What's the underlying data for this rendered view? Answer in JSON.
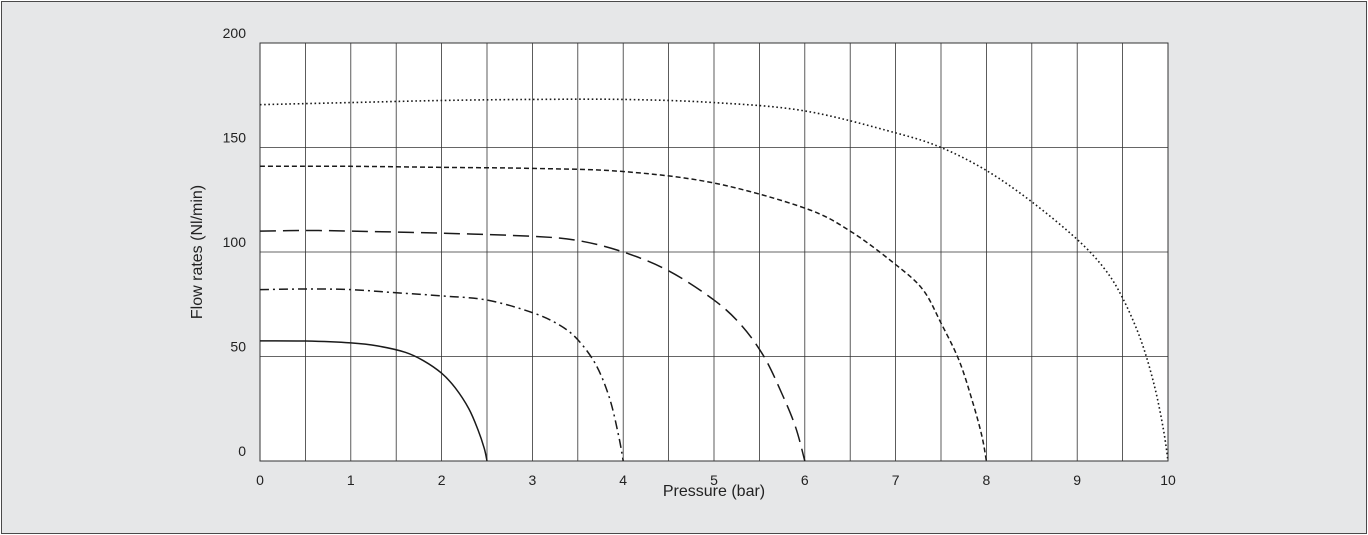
{
  "chart_data": {
    "type": "line",
    "xlabel": "Pressure (bar)",
    "ylabel": "Flow rates (Nl/min)",
    "xlim": [
      0,
      10
    ],
    "ylim": [
      0,
      200
    ],
    "x_ticks": [
      "0",
      "1",
      "2",
      "3",
      "4",
      "5",
      "6",
      "7",
      "8",
      "9",
      "10"
    ],
    "y_ticks": [
      "0",
      "50",
      "100",
      "150",
      "200"
    ],
    "grid": {
      "vertical_step": 0.5,
      "horizontal_step": 50
    },
    "colors": {
      "background": "#e6e7e8",
      "plot_area": "#ffffff",
      "lines": "#1a1a1a",
      "grid": "#333333"
    },
    "series": [
      {
        "line_style": "solid",
        "points": [
          [
            0,
            57.5
          ],
          [
            0.5,
            57.4
          ],
          [
            1,
            56.5
          ],
          [
            1.3,
            55
          ],
          [
            1.6,
            52
          ],
          [
            1.8,
            48
          ],
          [
            2.0,
            42
          ],
          [
            2.15,
            35
          ],
          [
            2.3,
            25
          ],
          [
            2.4,
            15
          ],
          [
            2.47,
            6
          ],
          [
            2.5,
            0
          ]
        ]
      },
      {
        "line_style": "dash-dot",
        "points": [
          [
            0,
            82
          ],
          [
            0.5,
            82.3
          ],
          [
            1,
            82
          ],
          [
            1.5,
            80.5
          ],
          [
            2,
            79
          ],
          [
            2.5,
            77
          ],
          [
            3,
            71
          ],
          [
            3.3,
            65
          ],
          [
            3.5,
            58
          ],
          [
            3.7,
            46
          ],
          [
            3.85,
            30
          ],
          [
            3.95,
            12
          ],
          [
            4.0,
            0
          ]
        ]
      },
      {
        "line_style": "long-dash",
        "points": [
          [
            0,
            110
          ],
          [
            0.5,
            110.3
          ],
          [
            1,
            110
          ],
          [
            2,
            109
          ],
          [
            3,
            107.5
          ],
          [
            3.5,
            105.5
          ],
          [
            4,
            100
          ],
          [
            4.5,
            91
          ],
          [
            5,
            77
          ],
          [
            5.3,
            65
          ],
          [
            5.55,
            50
          ],
          [
            5.75,
            32
          ],
          [
            5.9,
            16
          ],
          [
            6.0,
            0
          ]
        ]
      },
      {
        "line_style": "dashed",
        "points": [
          [
            0,
            141
          ],
          [
            1,
            141
          ],
          [
            2,
            140.5
          ],
          [
            3,
            140
          ],
          [
            4,
            138.5
          ],
          [
            5,
            133
          ],
          [
            6,
            121
          ],
          [
            6.5,
            110
          ],
          [
            7,
            94
          ],
          [
            7.3,
            82
          ],
          [
            7.5,
            66
          ],
          [
            7.7,
            48
          ],
          [
            7.85,
            28
          ],
          [
            7.95,
            12
          ],
          [
            8.0,
            0
          ]
        ]
      },
      {
        "line_style": "dotted",
        "points": [
          [
            0,
            170.5
          ],
          [
            1,
            171.5
          ],
          [
            2,
            172.5
          ],
          [
            3,
            173
          ],
          [
            4,
            173
          ],
          [
            5,
            171.5
          ],
          [
            6,
            167.5
          ],
          [
            7,
            157
          ],
          [
            7.5,
            150
          ],
          [
            8,
            139
          ],
          [
            8.5,
            124
          ],
          [
            9,
            106
          ],
          [
            9.3,
            92
          ],
          [
            9.5,
            78
          ],
          [
            9.7,
            58
          ],
          [
            9.85,
            36
          ],
          [
            9.95,
            15
          ],
          [
            10.0,
            0
          ]
        ]
      }
    ]
  }
}
